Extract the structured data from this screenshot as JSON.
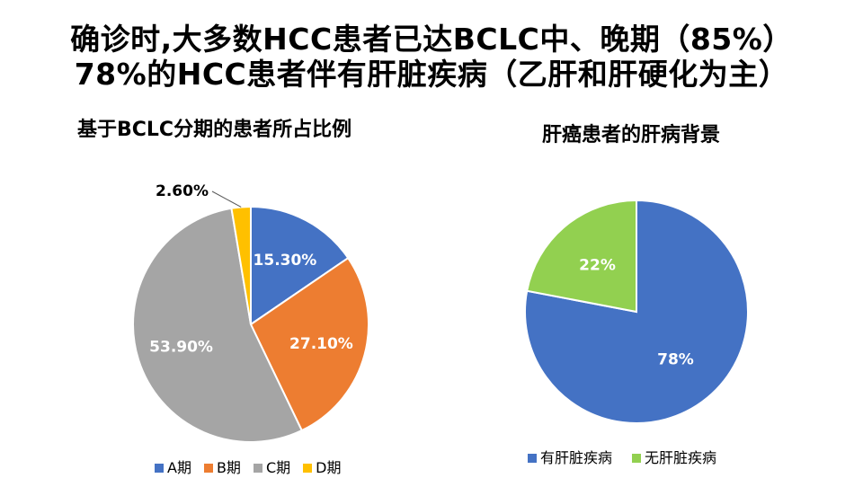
{
  "slide": {
    "headline_1": "确诊时,大多数HCC患者已达BCLC中、晚期（85%）",
    "headline_2": "78%的HCC患者伴有肝脏疾病（乙肝和肝硬化为主）"
  },
  "colors": {
    "blue": "#4472C4",
    "orange": "#ED7D31",
    "gray": "#A5A5A5",
    "yellow": "#FFC000",
    "green": "#92D050"
  },
  "chart_data": [
    {
      "type": "pie",
      "title": "基于BCLC分期的患者所占比例",
      "categories": [
        "A期",
        "B期",
        "C期",
        "D期"
      ],
      "values": [
        15.3,
        27.1,
        53.9,
        2.6
      ],
      "data_labels": [
        "15.30%",
        "27.10%",
        "53.90%",
        "2.60%"
      ],
      "legend": "bottom"
    },
    {
      "type": "pie",
      "title": "肝癌患者的肝病背景",
      "categories": [
        "有肝脏疾病",
        "无肝脏疾病"
      ],
      "values": [
        78,
        22
      ],
      "data_labels": [
        "78%",
        "22%"
      ],
      "legend": "bottom"
    }
  ]
}
